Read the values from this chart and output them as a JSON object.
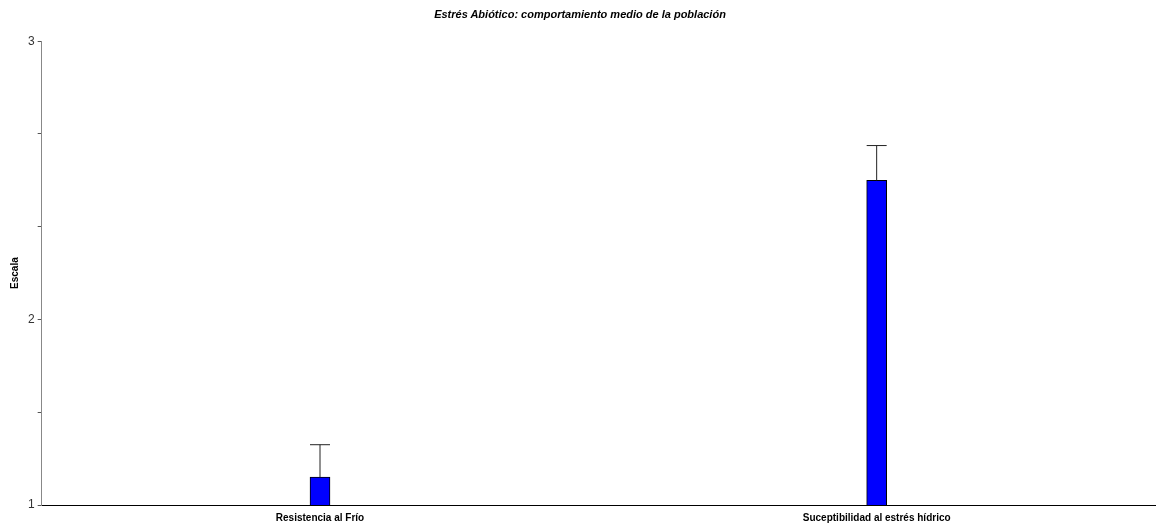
{
  "chart_data": {
    "type": "bar",
    "title": "Estrés Abiótico: comportamiento medio de la población",
    "ylabel": "Escala",
    "categories": [
      "Resistencia al Frío",
      "Suceptibilidad al estrés hídrico"
    ],
    "values": [
      1.12,
      2.4
    ],
    "color": "#0000ff",
    "errors": [
      [
        1.12,
        1.26
      ],
      [
        2.4,
        2.55
      ]
    ],
    "ylim": [
      1,
      3
    ],
    "yticks": [
      1,
      {
        "value": 1.4,
        "label": null
      },
      {
        "value": 1.8,
        "label": "2"
      },
      {
        "value": 2.2,
        "label": null
      },
      {
        "value": 2.6,
        "label": null
      },
      3
    ],
    "grid": false,
    "legend": false
  }
}
